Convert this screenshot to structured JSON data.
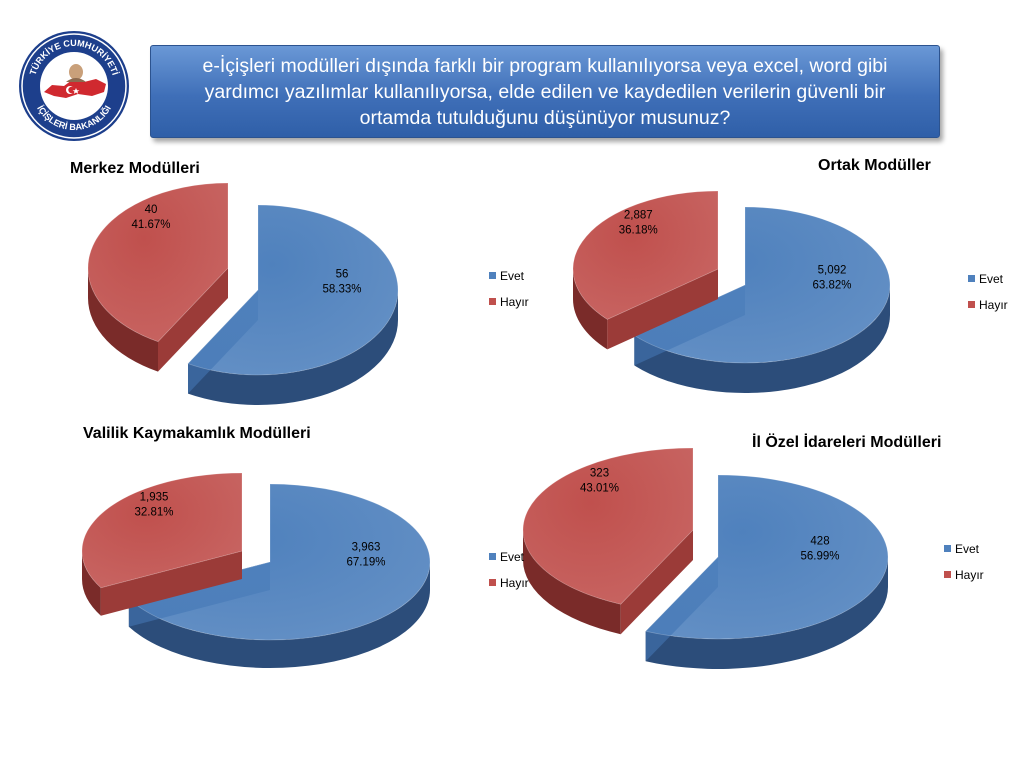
{
  "logo": {
    "text_top": "TÜRKİYE CUMHURİYETİ",
    "text_bottom": "İÇİŞLERİ BAKANLIĞI"
  },
  "header": {
    "question": "e-İçişleri modülleri dışında farklı bir program kullanılıyorsa veya excel, word gibi yardımcı yazılımlar kullanılıyorsa, elde edilen ve kaydedilen verilerin güvenli bir ortamda tutulduğunu düşünüyor musunuz?"
  },
  "colors": {
    "evet": "#4f81bd",
    "hayir": "#c0504d"
  },
  "chart_data": [
    {
      "type": "pie",
      "title": "Merkez Modülleri",
      "legend": [
        "Evet",
        "Hayır"
      ],
      "slices": [
        {
          "name": "Evet",
          "value": 56,
          "value_label": "56",
          "percent_label": "58.33%"
        },
        {
          "name": "Hayır",
          "value": 40,
          "value_label": "40",
          "percent_label": "41.67%"
        }
      ]
    },
    {
      "type": "pie",
      "title": "Ortak Modüller",
      "legend": [
        "Evet",
        "Hayır"
      ],
      "slices": [
        {
          "name": "Evet",
          "value": 5092,
          "value_label": "5,092",
          "percent_label": "63.82%"
        },
        {
          "name": "Hayır",
          "value": 2887,
          "value_label": "2,887",
          "percent_label": "36.18%"
        }
      ]
    },
    {
      "type": "pie",
      "title": "Valilik Kaymakamlık Modülleri",
      "legend": [
        "Evet",
        "Hayır"
      ],
      "slices": [
        {
          "name": "Evet",
          "value": 3963,
          "value_label": "3,963",
          "percent_label": "67.19%"
        },
        {
          "name": "Hayır",
          "value": 1935,
          "value_label": "1,935",
          "percent_label": "32.81%"
        }
      ]
    },
    {
      "type": "pie",
      "title": "İl Özel İdareleri Modülleri",
      "legend": [
        "Evet",
        "Hayır"
      ],
      "slices": [
        {
          "name": "Evet",
          "value": 428,
          "value_label": "428",
          "percent_label": "56.99%"
        },
        {
          "name": "Hayır",
          "value": 323,
          "value_label": "323",
          "percent_label": "43.01%"
        }
      ]
    }
  ]
}
